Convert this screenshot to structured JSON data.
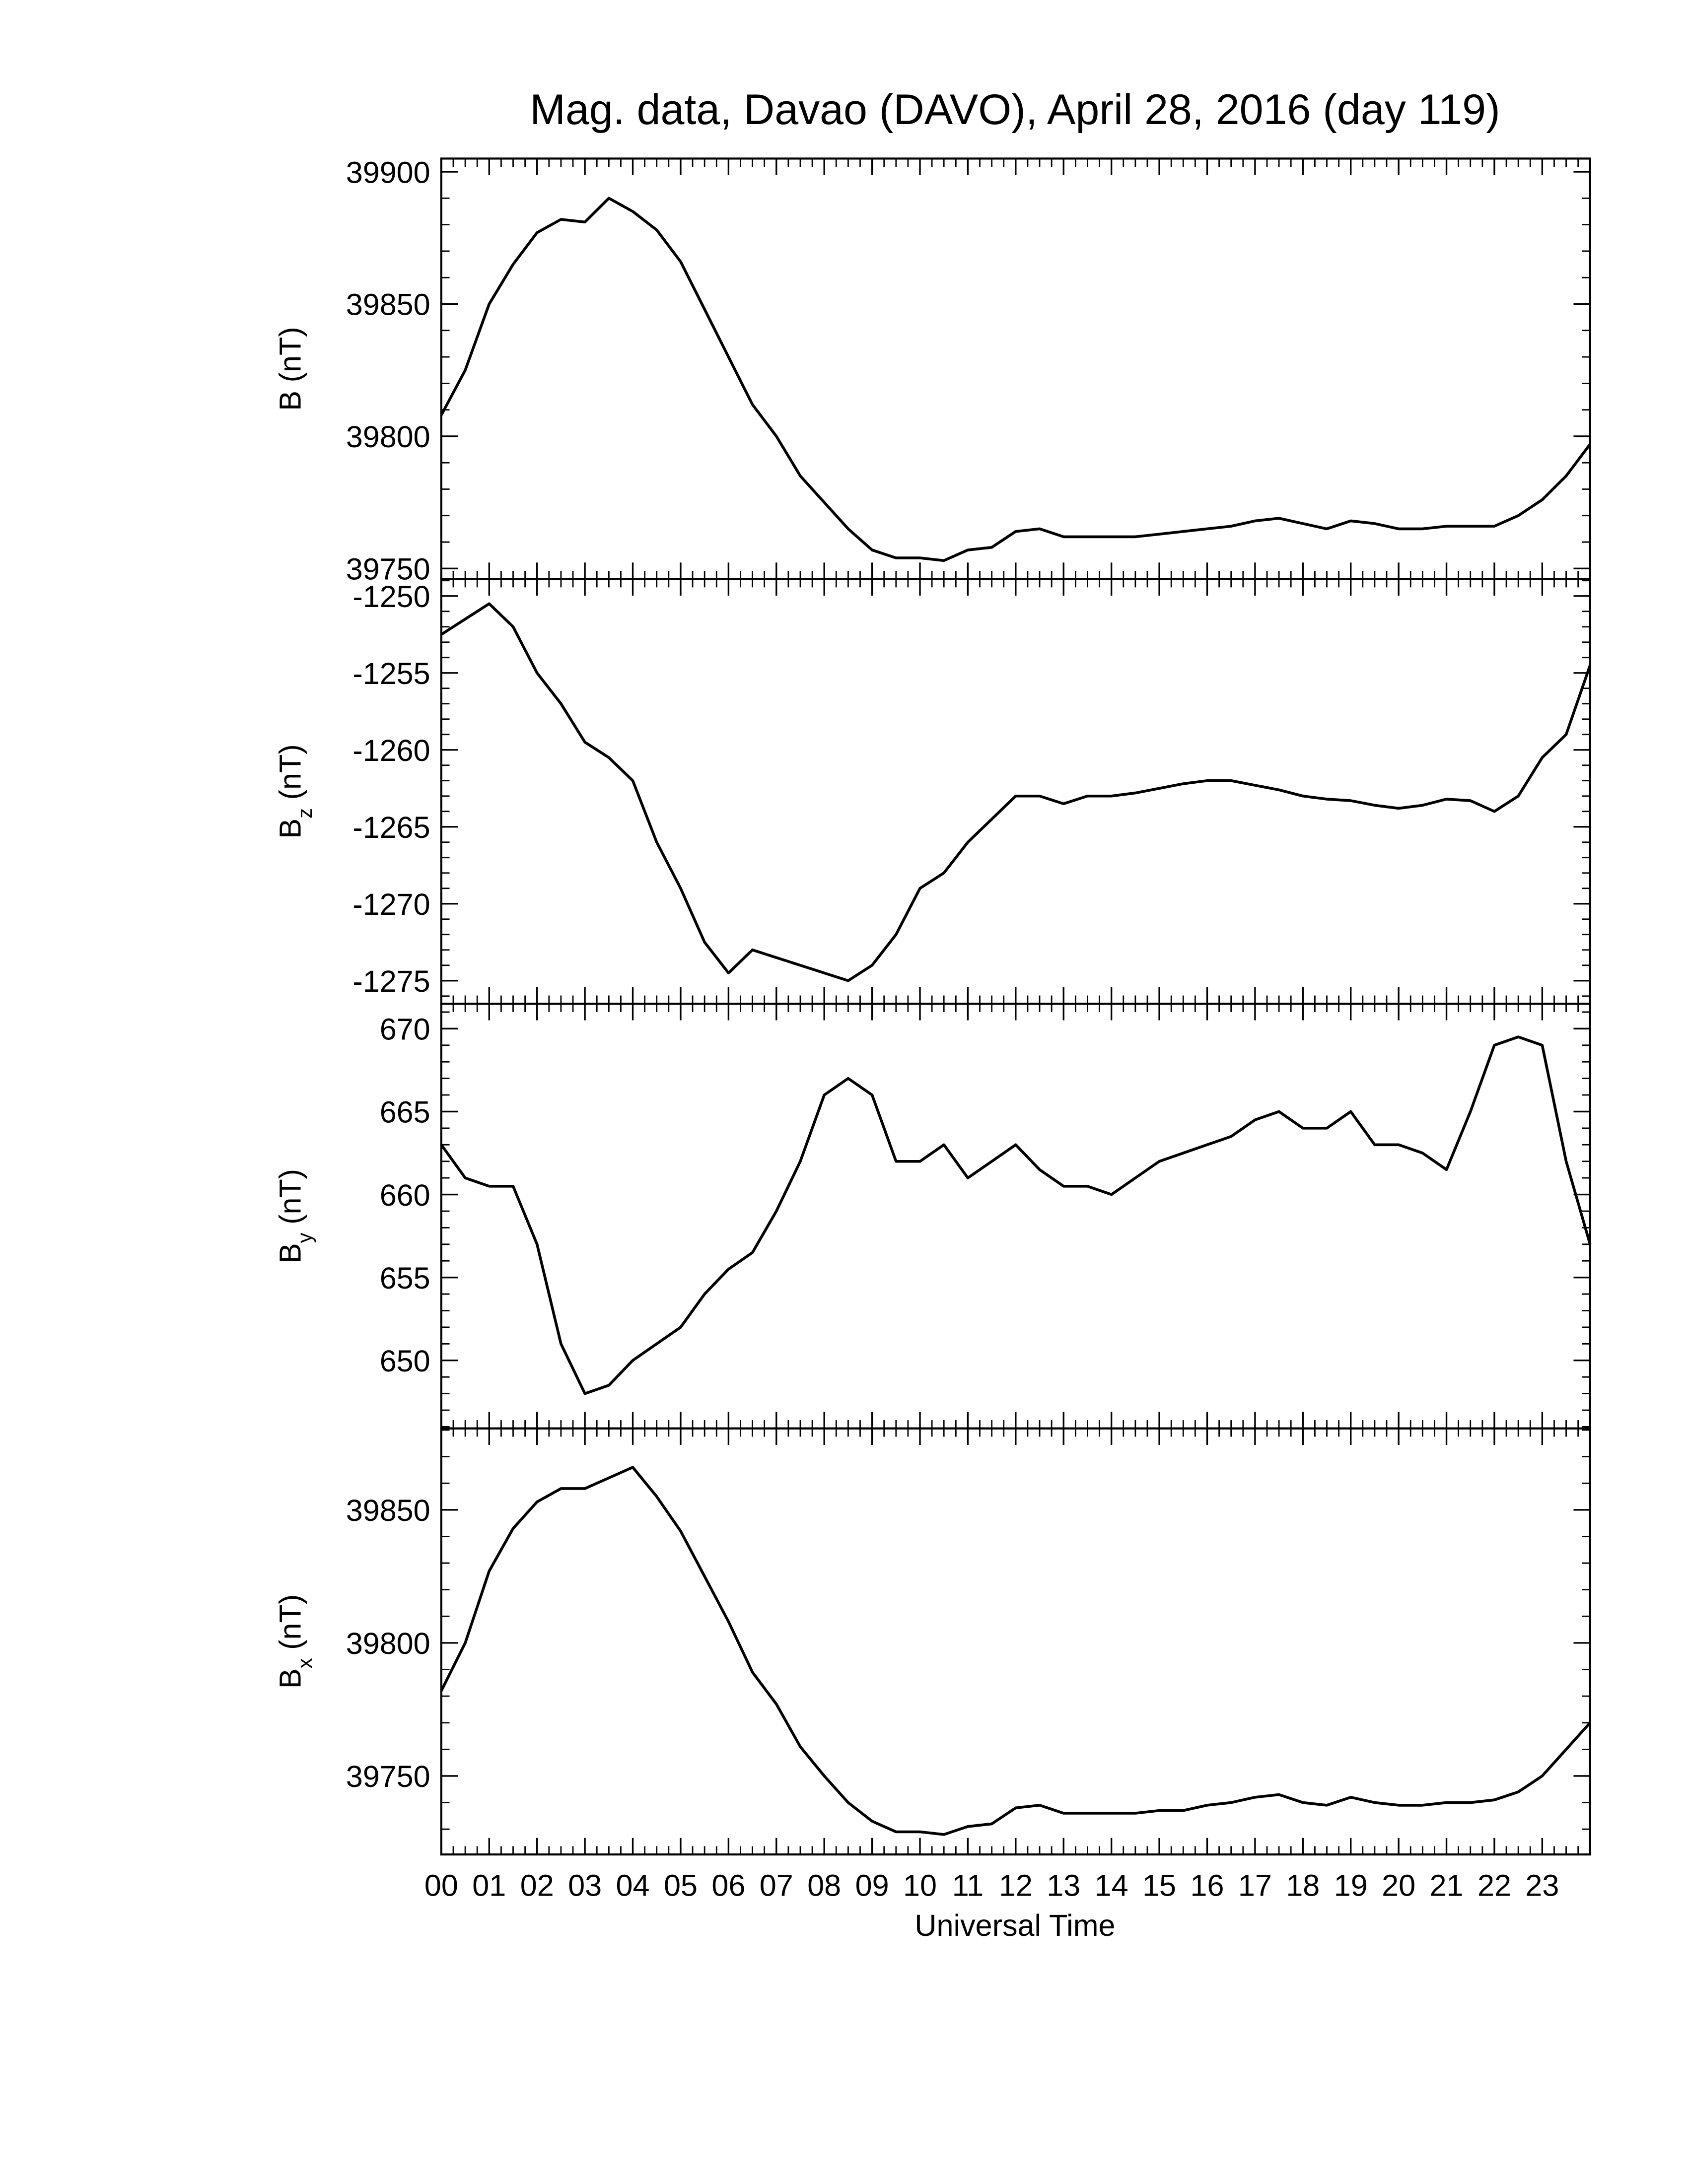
{
  "chart_data": [
    {
      "type": "line",
      "title": "Mag. data, Davao (DAVO), April 28, 2016 (day 119)",
      "ylabel": {
        "base": "B",
        "unit": "(nT)"
      },
      "xlim": [
        0,
        24
      ],
      "ylim": [
        39746,
        39905
      ],
      "yticks": [
        39750,
        39800,
        39850,
        39900
      ],
      "color": "#000000",
      "x": [
        0,
        0.5,
        1,
        1.5,
        2,
        2.5,
        3,
        3.5,
        4,
        4.5,
        5,
        5.5,
        6,
        6.5,
        7,
        7.5,
        8,
        8.5,
        9,
        9.5,
        10,
        10.5,
        11,
        11.5,
        12,
        12.5,
        13,
        13.5,
        14,
        14.5,
        15,
        15.5,
        16,
        16.5,
        17,
        17.5,
        18,
        18.5,
        19,
        19.5,
        20,
        20.5,
        21,
        21.5,
        22,
        22.5,
        23,
        23.5,
        24
      ],
      "values": [
        39808,
        39825,
        39850,
        39865,
        39877,
        39882,
        39881,
        39890,
        39885,
        39878,
        39866,
        39848,
        39830,
        39812,
        39800,
        39785,
        39775,
        39765,
        39757,
        39754,
        39754,
        39753,
        39757,
        39758,
        39764,
        39765,
        39762,
        39762,
        39762,
        39762,
        39763,
        39764,
        39765,
        39766,
        39768,
        39769,
        39767,
        39765,
        39768,
        39767,
        39765,
        39765,
        39766,
        39766,
        39766,
        39770,
        39776,
        39785,
        39797
      ]
    },
    {
      "type": "line",
      "ylabel": {
        "base": "B",
        "sub": "z",
        "unit": "(nT)"
      },
      "xlim": [
        0,
        24
      ],
      "ylim": [
        -1276.5,
        -1248.9
      ],
      "yticks": [
        -1250,
        -1255,
        -1260,
        -1265,
        -1270,
        -1275
      ],
      "color": "#000000",
      "x": [
        0,
        0.5,
        1,
        1.5,
        2,
        2.5,
        3,
        3.5,
        4,
        4.5,
        5,
        5.5,
        6,
        6.5,
        7,
        7.5,
        8,
        8.5,
        9,
        9.5,
        10,
        10.5,
        11,
        11.5,
        12,
        12.5,
        13,
        13.5,
        14,
        14.5,
        15,
        15.5,
        16,
        16.5,
        17,
        17.5,
        18,
        18.5,
        19,
        19.5,
        20,
        20.5,
        21,
        21.5,
        22,
        22.5,
        23,
        23.5,
        24
      ],
      "values": [
        -1252.5,
        -1251.5,
        -1250.5,
        -1252,
        -1255,
        -1257,
        -1259.5,
        -1260.5,
        -1262,
        -1266,
        -1269,
        -1272.5,
        -1274.5,
        -1273,
        -1273.5,
        -1274,
        -1274.5,
        -1275,
        -1274,
        -1272,
        -1269,
        -1268,
        -1266,
        -1264.5,
        -1263,
        -1263,
        -1263.5,
        -1263,
        -1263,
        -1262.8,
        -1262.5,
        -1262.2,
        -1262,
        -1262,
        -1262.3,
        -1262.6,
        -1263,
        -1263.2,
        -1263.3,
        -1263.6,
        -1263.8,
        -1263.6,
        -1263.2,
        -1263.3,
        -1264,
        -1263,
        -1260.5,
        -1259,
        -1254.5
      ]
    },
    {
      "type": "line",
      "ylabel": {
        "base": "B",
        "sub": "y",
        "unit": "(nT)"
      },
      "xlim": [
        0,
        24
      ],
      "ylim": [
        645.9,
        671.5
      ],
      "yticks": [
        650,
        655,
        660,
        665,
        670
      ],
      "color": "#000000",
      "x": [
        0,
        0.5,
        1,
        1.5,
        2,
        2.5,
        3,
        3.5,
        4,
        4.5,
        5,
        5.5,
        6,
        6.5,
        7,
        7.5,
        8,
        8.5,
        9,
        9.5,
        10,
        10.5,
        11,
        11.5,
        12,
        12.5,
        13,
        13.5,
        14,
        14.5,
        15,
        15.5,
        16,
        16.5,
        17,
        17.5,
        18,
        18.5,
        19,
        19.5,
        20,
        20.5,
        21,
        21.5,
        22,
        22.5,
        23,
        23.5,
        24
      ],
      "values": [
        663,
        661,
        660.5,
        660.5,
        657,
        651,
        648,
        648.5,
        650,
        651,
        652,
        654,
        655.5,
        656.5,
        659,
        662,
        666,
        667,
        666,
        662,
        662,
        663,
        661,
        662,
        663,
        661.5,
        660.5,
        660.5,
        660,
        661,
        662,
        662.5,
        663,
        663.5,
        664.5,
        665,
        664,
        664,
        665,
        663,
        663,
        662.5,
        661.5,
        665,
        669,
        669.5,
        669,
        662,
        657
      ]
    },
    {
      "type": "line",
      "ylabel": {
        "base": "B",
        "sub": "x",
        "unit": "(nT)"
      },
      "xlabel": "Universal Time",
      "xlim": [
        0,
        24
      ],
      "ylim": [
        39720.5,
        39880.6
      ],
      "yticks": [
        39750,
        39800,
        39850
      ],
      "xticks": [
        {
          "value": 0,
          "label": "00"
        },
        {
          "value": 1,
          "label": "01"
        },
        {
          "value": 2,
          "label": "02"
        },
        {
          "value": 3,
          "label": "03"
        },
        {
          "value": 4,
          "label": "04"
        },
        {
          "value": 5,
          "label": "05"
        },
        {
          "value": 6,
          "label": "06"
        },
        {
          "value": 7,
          "label": "07"
        },
        {
          "value": 8,
          "label": "08"
        },
        {
          "value": 9,
          "label": "09"
        },
        {
          "value": 10,
          "label": "10"
        },
        {
          "value": 11,
          "label": "11"
        },
        {
          "value": 12,
          "label": "12"
        },
        {
          "value": 13,
          "label": "13"
        },
        {
          "value": 14,
          "label": "14"
        },
        {
          "value": 15,
          "label": "15"
        },
        {
          "value": 16,
          "label": "16"
        },
        {
          "value": 17,
          "label": "17"
        },
        {
          "value": 18,
          "label": "18"
        },
        {
          "value": 19,
          "label": "19"
        },
        {
          "value": 20,
          "label": "20"
        },
        {
          "value": 21,
          "label": "21"
        },
        {
          "value": 22,
          "label": "22"
        },
        {
          "value": 23,
          "label": "23"
        }
      ],
      "color": "#000000",
      "x": [
        0,
        0.5,
        1,
        1.5,
        2,
        2.5,
        3,
        3.5,
        4,
        4.5,
        5,
        5.5,
        6,
        6.5,
        7,
        7.5,
        8,
        8.5,
        9,
        9.5,
        10,
        10.5,
        11,
        11.5,
        12,
        12.5,
        13,
        13.5,
        14,
        14.5,
        15,
        15.5,
        16,
        16.5,
        17,
        17.5,
        18,
        18.5,
        19,
        19.5,
        20,
        20.5,
        21,
        21.5,
        22,
        22.5,
        23,
        23.5,
        24
      ],
      "values": [
        39782,
        39800,
        39827,
        39843,
        39853,
        39858,
        39858,
        39862,
        39866,
        39855,
        39842,
        39825,
        39808,
        39789,
        39777,
        39761,
        39750,
        39740,
        39733,
        39729,
        39729,
        39728,
        39731,
        39732,
        39738,
        39739,
        39736,
        39736,
        39736,
        39736,
        39737,
        39737,
        39739,
        39740,
        39742,
        39743,
        39740,
        39739,
        39742,
        39740,
        39739,
        39739,
        39740,
        39740,
        39741,
        39744,
        39750,
        39760,
        39770
      ]
    }
  ]
}
